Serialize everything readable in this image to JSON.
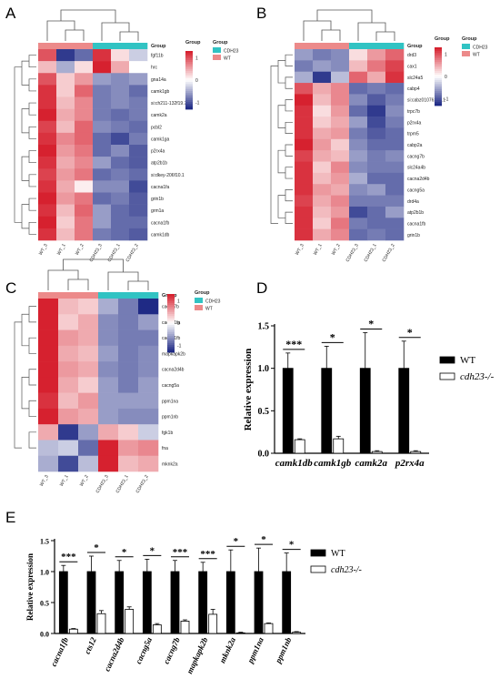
{
  "panel_labels": [
    "A",
    "B",
    "C",
    "D",
    "E"
  ],
  "colors": {
    "group_cdh23": "#31c3c3",
    "group_wt": "#ec8a8a",
    "scale_high": "#d6212f",
    "scale_mid": "#ffffff",
    "scale_low": "#1f2a85"
  },
  "chart_data": [
    {
      "type": "heatmap",
      "panel": "A",
      "rows": [
        "fgf11b",
        "hrc",
        "gna14a",
        "camk1gb",
        "si:ch211-132f19.7",
        "camk2a",
        "pcbl2",
        "camk1ga",
        "p2rx4a",
        "atp2b1b",
        "si:dkey-206f10.1",
        "cacna1fa",
        "grin1b",
        "grm1a",
        "cacna1fb",
        "camk1db"
      ],
      "columns": [
        "WT_3",
        "WT_1",
        "WT_2",
        "CDH23_3",
        "CDH23_1",
        "CDH23_2"
      ],
      "values": [
        [
          1.0,
          -1.2,
          -0.9,
          1.2,
          0.2,
          -0.3
        ],
        [
          0.4,
          -0.5,
          0.2,
          1.3,
          0.5,
          0.0
        ],
        [
          1.0,
          0.3,
          0.6,
          -0.6,
          -0.7,
          -0.6
        ],
        [
          1.2,
          0.3,
          0.9,
          -0.8,
          -0.7,
          -0.9
        ],
        [
          1.2,
          0.4,
          0.7,
          -0.8,
          -0.7,
          -0.8
        ],
        [
          1.3,
          0.5,
          0.7,
          -0.8,
          -0.9,
          -0.8
        ],
        [
          1.1,
          0.4,
          0.9,
          -0.7,
          -0.8,
          -0.9
        ],
        [
          1.2,
          0.7,
          0.9,
          -0.9,
          -1.1,
          -0.8
        ],
        [
          1.3,
          0.6,
          0.8,
          -0.9,
          -0.7,
          -1.0
        ],
        [
          1.2,
          0.5,
          0.7,
          -0.6,
          -0.9,
          -1.0
        ],
        [
          1.1,
          0.6,
          0.8,
          -0.9,
          -0.8,
          -0.9
        ],
        [
          1.2,
          0.5,
          0.1,
          -0.7,
          -0.7,
          -1.1
        ],
        [
          1.3,
          0.6,
          0.8,
          -0.9,
          -0.8,
          -1.0
        ],
        [
          1.2,
          0.4,
          0.9,
          -0.6,
          -0.9,
          -1.0
        ],
        [
          1.3,
          0.3,
          0.8,
          -0.6,
          -0.9,
          -0.9
        ],
        [
          1.2,
          0.4,
          0.8,
          -0.8,
          -0.9,
          -1.0
        ]
      ],
      "legend": {
        "title": "Group",
        "items": [
          "CDH23",
          "WT"
        ]
      },
      "scale": {
        "title": "Group",
        "ticks": [
          "1",
          "0",
          "-1"
        ]
      }
    },
    {
      "type": "heatmap",
      "panel": "B",
      "rows": [
        "drd3",
        "cax1",
        "slc24a5",
        "cabp4",
        "si:cabz01076231.1",
        "trpc7b",
        "p2rx4a",
        "trpm5",
        "cabp2a",
        "cacng7b",
        "slc24a4b",
        "cacna2d4b",
        "cacng5a",
        "drd4a",
        "atp2b1b",
        "cacna1fb",
        "grin1b"
      ],
      "columns": [
        "WT_3",
        "WT_1",
        "WT_2",
        "CDH23_3",
        "CDH23_1",
        "CDH23_2"
      ],
      "values": [
        [
          -0.6,
          -0.8,
          -0.7,
          0.2,
          0.6,
          0.9
        ],
        [
          -0.8,
          -0.6,
          -0.7,
          0.4,
          0.8,
          1.1
        ],
        [
          -0.5,
          -1.2,
          -0.4,
          0.9,
          0.5,
          1.2
        ],
        [
          1.0,
          0.5,
          0.7,
          -0.9,
          -0.8,
          -0.9
        ],
        [
          1.3,
          0.4,
          0.7,
          -0.7,
          -1.0,
          -0.8
        ],
        [
          1.2,
          0.2,
          0.6,
          -0.9,
          -1.2,
          -0.7
        ],
        [
          1.2,
          0.3,
          0.5,
          -0.6,
          -1.1,
          -0.8
        ],
        [
          1.2,
          0.5,
          0.6,
          -0.8,
          -1.0,
          -0.9
        ],
        [
          1.3,
          0.6,
          0.3,
          -0.7,
          -0.9,
          -0.9
        ],
        [
          1.1,
          0.5,
          0.4,
          -0.6,
          -0.8,
          -0.7
        ],
        [
          1.2,
          0.3,
          0.7,
          -0.7,
          -0.8,
          -0.8
        ],
        [
          1.2,
          0.4,
          0.6,
          -0.5,
          -0.9,
          -0.9
        ],
        [
          1.2,
          0.6,
          0.5,
          -0.7,
          -0.6,
          -0.9
        ],
        [
          1.1,
          0.5,
          0.7,
          -0.8,
          -0.8,
          -0.8
        ],
        [
          1.2,
          0.4,
          0.6,
          -1.1,
          -0.9,
          -0.6
        ],
        [
          1.2,
          0.3,
          0.8,
          -0.8,
          -0.9,
          -0.9
        ],
        [
          1.2,
          0.5,
          0.7,
          -0.9,
          -0.8,
          -0.9
        ]
      ],
      "legend": {
        "title": "Group",
        "items": [
          "CDH23",
          "WT"
        ]
      },
      "scale": {
        "title": "Group",
        "ticks": [
          "1",
          "0",
          "-1"
        ]
      }
    },
    {
      "type": "heatmap",
      "panel": "C",
      "rows": [
        "cacng7b",
        "cacna1fa",
        "cacna1fb",
        "mapkapk2b",
        "cacna2d4b",
        "cacng5a",
        "ppm1na",
        "ppm1nb",
        "fgk1b",
        "fna",
        "mknk2a"
      ],
      "columns": [
        "WT_3",
        "WT_1",
        "WT_2",
        "CDH23_3",
        "CDH23_1",
        "CDH23_2"
      ],
      "values": [
        [
          1.3,
          0.4,
          0.3,
          -0.5,
          -0.8,
          -1.3
        ],
        [
          1.3,
          0.3,
          0.5,
          -0.7,
          -0.8,
          -0.6
        ],
        [
          1.3,
          0.6,
          0.5,
          -0.7,
          -0.8,
          -0.8
        ],
        [
          1.3,
          0.5,
          0.4,
          -0.6,
          -0.8,
          -0.7
        ],
        [
          1.3,
          0.6,
          0.5,
          -0.7,
          -0.8,
          -0.7
        ],
        [
          1.3,
          0.5,
          0.3,
          -0.6,
          -0.8,
          -0.6
        ],
        [
          1.2,
          0.4,
          0.6,
          -0.6,
          -0.6,
          -0.6
        ],
        [
          1.3,
          0.6,
          0.5,
          -0.6,
          -0.7,
          -0.7
        ],
        [
          0.5,
          -1.2,
          -0.6,
          0.5,
          0.3,
          -0.3
        ],
        [
          -0.4,
          -0.3,
          -0.9,
          1.3,
          0.6,
          0.7
        ],
        [
          -0.5,
          -1.1,
          -0.4,
          1.5,
          0.4,
          0.5
        ]
      ],
      "legend": {
        "title": "Group",
        "items": [
          "CDH23",
          "WT"
        ]
      },
      "scale": {
        "title": "",
        "ticks": [
          "1",
          "0",
          "-1"
        ]
      }
    },
    {
      "type": "bar",
      "panel": "D",
      "categories": [
        "camk1db",
        "camk1gb",
        "camk2a",
        "p2rx4a"
      ],
      "series": [
        {
          "name": "WT",
          "values": [
            1.0,
            1.0,
            1.0,
            1.0
          ],
          "errors": [
            0.18,
            0.26,
            0.42,
            0.32
          ]
        },
        {
          "name": "cdh23-/-",
          "values": [
            0.16,
            0.17,
            0.02,
            0.02
          ],
          "errors": [
            0.01,
            0.03,
            0.01,
            0.01
          ]
        }
      ],
      "significance": [
        "***",
        "*",
        "*",
        "*"
      ],
      "ylabel": "Relative expression",
      "ylim": [
        0,
        1.5
      ],
      "yticks": [
        "0.0",
        "0.5",
        "1.0",
        "1.5"
      ]
    },
    {
      "type": "bar",
      "panel": "E",
      "categories": [
        "cacna1fb",
        "cts12",
        "cacna2d4b",
        "cacng5a",
        "cacng7b",
        "mapkapk2b",
        "mknk2a",
        "ppm1na",
        "ppm1nb"
      ],
      "series": [
        {
          "name": "WT",
          "values": [
            1.0,
            1.0,
            1.0,
            1.0,
            1.0,
            1.0,
            1.0,
            1.0,
            1.0
          ],
          "errors": [
            0.1,
            0.25,
            0.18,
            0.2,
            0.18,
            0.15,
            0.35,
            0.38,
            0.3
          ]
        },
        {
          "name": "cdh23-/-",
          "values": [
            0.07,
            0.32,
            0.39,
            0.14,
            0.2,
            0.31,
            0.01,
            0.16,
            0.02
          ],
          "errors": [
            0.01,
            0.05,
            0.04,
            0.02,
            0.02,
            0.08,
            0.01,
            0.01,
            0.01
          ]
        }
      ],
      "significance": [
        "***",
        "*",
        "*",
        "*",
        "***",
        "***",
        "*",
        "*",
        "*"
      ],
      "ylabel": "Relative expression",
      "ylim": [
        0,
        1.5
      ],
      "yticks": [
        "0.0",
        "0.5",
        "1.0",
        "1.5"
      ]
    }
  ]
}
